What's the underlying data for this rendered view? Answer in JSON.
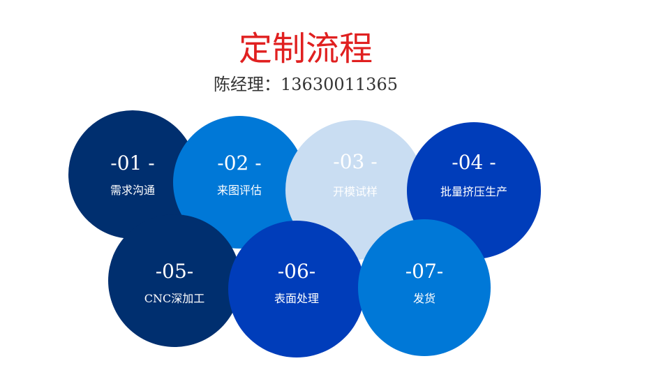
{
  "title": "定制流程",
  "contact": "陈经理：13630011365",
  "colors": {
    "title": "#e02020",
    "navy": "#002f6f",
    "blue": "#0078d7",
    "light": "#c9ddf2",
    "royal": "#003dba"
  },
  "steps": [
    {
      "num": "-01 -",
      "label": "需求沟通",
      "color": "#002f6f"
    },
    {
      "num": "-02 -",
      "label": "来图评估",
      "color": "#0078d7"
    },
    {
      "num": "-03 -",
      "label": "开模试样",
      "color": "#c9ddf2"
    },
    {
      "num": "-04 -",
      "label": "批量挤压生产",
      "color": "#003dba"
    },
    {
      "num": "-05-",
      "label": "CNC深加工",
      "color": "#002f6f"
    },
    {
      "num": "-06-",
      "label": "表面处理",
      "color": "#003dba"
    },
    {
      "num": "-07-",
      "label": "发货",
      "color": "#0078d7"
    }
  ]
}
